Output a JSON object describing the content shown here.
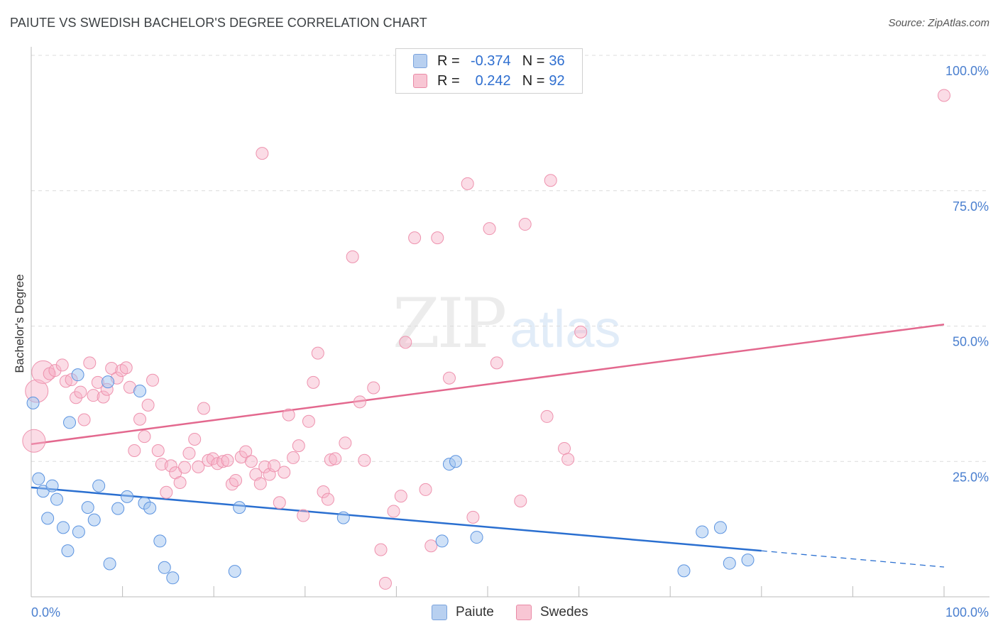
{
  "title": "PAIUTE VS SWEDISH BACHELOR'S DEGREE CORRELATION CHART",
  "source": "Source: ZipAtlas.com",
  "watermark": {
    "zip": "ZIP",
    "atlas": "atlas"
  },
  "colors": {
    "paiute": "#5b93e0",
    "swedes": "#ee92ae",
    "paiute_line": "#2a6fd0",
    "swedes_line": "#e3688e",
    "tick_text": "#4a7fcf"
  },
  "legend": {
    "rows": [
      {
        "r_label": "R =",
        "r_value": "-0.374",
        "n_label": "N =",
        "n_value": "36"
      },
      {
        "r_label": "R =",
        "r_value": "0.242",
        "n_label": "N =",
        "n_value": "92"
      }
    ]
  },
  "bottom_legend": {
    "paiute": "Paiute",
    "swedes": "Swedes"
  },
  "chart_data": {
    "type": "scatter",
    "title": "PAIUTE VS SWEDISH BACHELOR'S DEGREE CORRELATION CHART",
    "xlabel": "",
    "ylabel": "Bachelor's Degree",
    "xlim": [
      0,
      100
    ],
    "ylim": [
      0,
      100
    ],
    "x_tick_labels": [
      "0.0%",
      "100.0%"
    ],
    "y_ticks": [
      25,
      50,
      75,
      100
    ],
    "y_tick_labels": [
      "25.0%",
      "50.0%",
      "75.0%",
      "100.0%"
    ],
    "grid": true,
    "legend_position": "top-center",
    "series": [
      {
        "name": "Paiute",
        "r": -0.374,
        "n": 36,
        "trend": {
          "x0": 0,
          "y0": 20.2,
          "x1": 80,
          "y1": 8.5,
          "dash_to_x": 100,
          "dash_to_y": 5.5
        },
        "points": [
          {
            "x": 0.2,
            "y": 35.8
          },
          {
            "x": 0.8,
            "y": 21.8
          },
          {
            "x": 1.3,
            "y": 19.5
          },
          {
            "x": 1.8,
            "y": 14.5
          },
          {
            "x": 2.3,
            "y": 20.5
          },
          {
            "x": 2.8,
            "y": 18.0
          },
          {
            "x": 3.5,
            "y": 12.8
          },
          {
            "x": 4.0,
            "y": 8.5
          },
          {
            "x": 4.2,
            "y": 32.2
          },
          {
            "x": 5.2,
            "y": 12.0
          },
          {
            "x": 5.1,
            "y": 41.0
          },
          {
            "x": 6.2,
            "y": 16.5
          },
          {
            "x": 6.9,
            "y": 14.2
          },
          {
            "x": 7.4,
            "y": 20.5
          },
          {
            "x": 8.6,
            "y": 6.1
          },
          {
            "x": 9.5,
            "y": 16.3
          },
          {
            "x": 8.4,
            "y": 39.7
          },
          {
            "x": 10.5,
            "y": 18.5
          },
          {
            "x": 11.9,
            "y": 38.0
          },
          {
            "x": 12.4,
            "y": 17.3
          },
          {
            "x": 13.0,
            "y": 16.4
          },
          {
            "x": 14.1,
            "y": 10.3
          },
          {
            "x": 14.6,
            "y": 5.4
          },
          {
            "x": 15.5,
            "y": 3.5
          },
          {
            "x": 22.3,
            "y": 4.7
          },
          {
            "x": 22.8,
            "y": 16.5
          },
          {
            "x": 34.2,
            "y": 14.6
          },
          {
            "x": 45.0,
            "y": 10.3
          },
          {
            "x": 45.8,
            "y": 24.5
          },
          {
            "x": 46.5,
            "y": 25.0
          },
          {
            "x": 48.8,
            "y": 11.0
          },
          {
            "x": 71.5,
            "y": 4.8
          },
          {
            "x": 73.5,
            "y": 12.0
          },
          {
            "x": 75.5,
            "y": 12.8
          },
          {
            "x": 76.5,
            "y": 6.2
          },
          {
            "x": 78.5,
            "y": 6.8
          }
        ]
      },
      {
        "name": "Swedes",
        "r": 0.242,
        "n": 92,
        "trend": {
          "x0": 0,
          "y0": 28.2,
          "x1": 100,
          "y1": 50.3
        },
        "points": [
          {
            "x": 0.3,
            "y": 28.8,
            "big": true
          },
          {
            "x": 0.6,
            "y": 38.0,
            "big": true
          },
          {
            "x": 1.3,
            "y": 41.5,
            "big": true
          },
          {
            "x": 2.0,
            "y": 41.2
          },
          {
            "x": 2.6,
            "y": 41.8
          },
          {
            "x": 3.4,
            "y": 42.8
          },
          {
            "x": 3.8,
            "y": 39.8
          },
          {
            "x": 4.4,
            "y": 40.1
          },
          {
            "x": 4.9,
            "y": 36.8
          },
          {
            "x": 5.4,
            "y": 37.8
          },
          {
            "x": 5.8,
            "y": 32.7
          },
          {
            "x": 6.4,
            "y": 43.2
          },
          {
            "x": 6.8,
            "y": 37.2
          },
          {
            "x": 7.3,
            "y": 39.6
          },
          {
            "x": 7.9,
            "y": 36.9
          },
          {
            "x": 8.3,
            "y": 38.3
          },
          {
            "x": 8.8,
            "y": 42.2
          },
          {
            "x": 9.4,
            "y": 40.4
          },
          {
            "x": 9.9,
            "y": 41.8
          },
          {
            "x": 10.4,
            "y": 42.3
          },
          {
            "x": 10.8,
            "y": 38.7
          },
          {
            "x": 11.3,
            "y": 27.0
          },
          {
            "x": 11.9,
            "y": 32.8
          },
          {
            "x": 12.4,
            "y": 29.6
          },
          {
            "x": 12.8,
            "y": 35.4
          },
          {
            "x": 13.3,
            "y": 40.0
          },
          {
            "x": 13.9,
            "y": 27.0
          },
          {
            "x": 14.3,
            "y": 24.5
          },
          {
            "x": 14.8,
            "y": 19.3
          },
          {
            "x": 15.3,
            "y": 24.2
          },
          {
            "x": 15.8,
            "y": 22.9
          },
          {
            "x": 16.3,
            "y": 21.1
          },
          {
            "x": 16.8,
            "y": 23.9
          },
          {
            "x": 17.3,
            "y": 26.5
          },
          {
            "x": 17.9,
            "y": 29.1
          },
          {
            "x": 18.3,
            "y": 24.0
          },
          {
            "x": 18.9,
            "y": 34.8
          },
          {
            "x": 19.4,
            "y": 25.2
          },
          {
            "x": 19.9,
            "y": 25.5
          },
          {
            "x": 20.4,
            "y": 24.6
          },
          {
            "x": 21.0,
            "y": 25.0
          },
          {
            "x": 21.5,
            "y": 25.2
          },
          {
            "x": 22.0,
            "y": 20.8
          },
          {
            "x": 22.4,
            "y": 21.5
          },
          {
            "x": 23.0,
            "y": 25.8
          },
          {
            "x": 23.5,
            "y": 26.8
          },
          {
            "x": 24.1,
            "y": 25.0
          },
          {
            "x": 24.6,
            "y": 22.6
          },
          {
            "x": 25.1,
            "y": 20.9
          },
          {
            "x": 25.6,
            "y": 24.0
          },
          {
            "x": 26.1,
            "y": 22.6
          },
          {
            "x": 26.6,
            "y": 24.2
          },
          {
            "x": 27.2,
            "y": 17.4
          },
          {
            "x": 27.7,
            "y": 23.0
          },
          {
            "x": 28.2,
            "y": 33.6
          },
          {
            "x": 28.7,
            "y": 25.7
          },
          {
            "x": 29.3,
            "y": 27.9
          },
          {
            "x": 29.8,
            "y": 15.0
          },
          {
            "x": 30.4,
            "y": 32.4
          },
          {
            "x": 30.9,
            "y": 39.6
          },
          {
            "x": 31.4,
            "y": 45.0
          },
          {
            "x": 32.0,
            "y": 19.4
          },
          {
            "x": 32.5,
            "y": 18.0
          },
          {
            "x": 32.8,
            "y": 25.3
          },
          {
            "x": 25.3,
            "y": 81.9
          },
          {
            "x": 33.3,
            "y": 25.5
          },
          {
            "x": 34.4,
            "y": 28.4
          },
          {
            "x": 35.2,
            "y": 62.8
          },
          {
            "x": 36.0,
            "y": 36.0
          },
          {
            "x": 36.5,
            "y": 25.2
          },
          {
            "x": 37.5,
            "y": 38.6
          },
          {
            "x": 38.3,
            "y": 8.7
          },
          {
            "x": 38.8,
            "y": 2.5
          },
          {
            "x": 39.7,
            "y": 15.8
          },
          {
            "x": 40.5,
            "y": 18.6
          },
          {
            "x": 41.0,
            "y": 47.0
          },
          {
            "x": 42.0,
            "y": 66.3
          },
          {
            "x": 43.2,
            "y": 19.8
          },
          {
            "x": 43.8,
            "y": 9.4
          },
          {
            "x": 44.5,
            "y": 66.3
          },
          {
            "x": 45.8,
            "y": 40.4
          },
          {
            "x": 47.8,
            "y": 76.3
          },
          {
            "x": 48.4,
            "y": 14.7
          },
          {
            "x": 50.2,
            "y": 68.0
          },
          {
            "x": 51.0,
            "y": 43.2
          },
          {
            "x": 53.6,
            "y": 17.7
          },
          {
            "x": 54.1,
            "y": 68.8
          },
          {
            "x": 56.5,
            "y": 33.3
          },
          {
            "x": 56.9,
            "y": 76.9
          },
          {
            "x": 58.4,
            "y": 27.4
          },
          {
            "x": 58.8,
            "y": 25.4
          },
          {
            "x": 60.2,
            "y": 48.9
          },
          {
            "x": 100.0,
            "y": 92.6
          }
        ]
      }
    ]
  }
}
